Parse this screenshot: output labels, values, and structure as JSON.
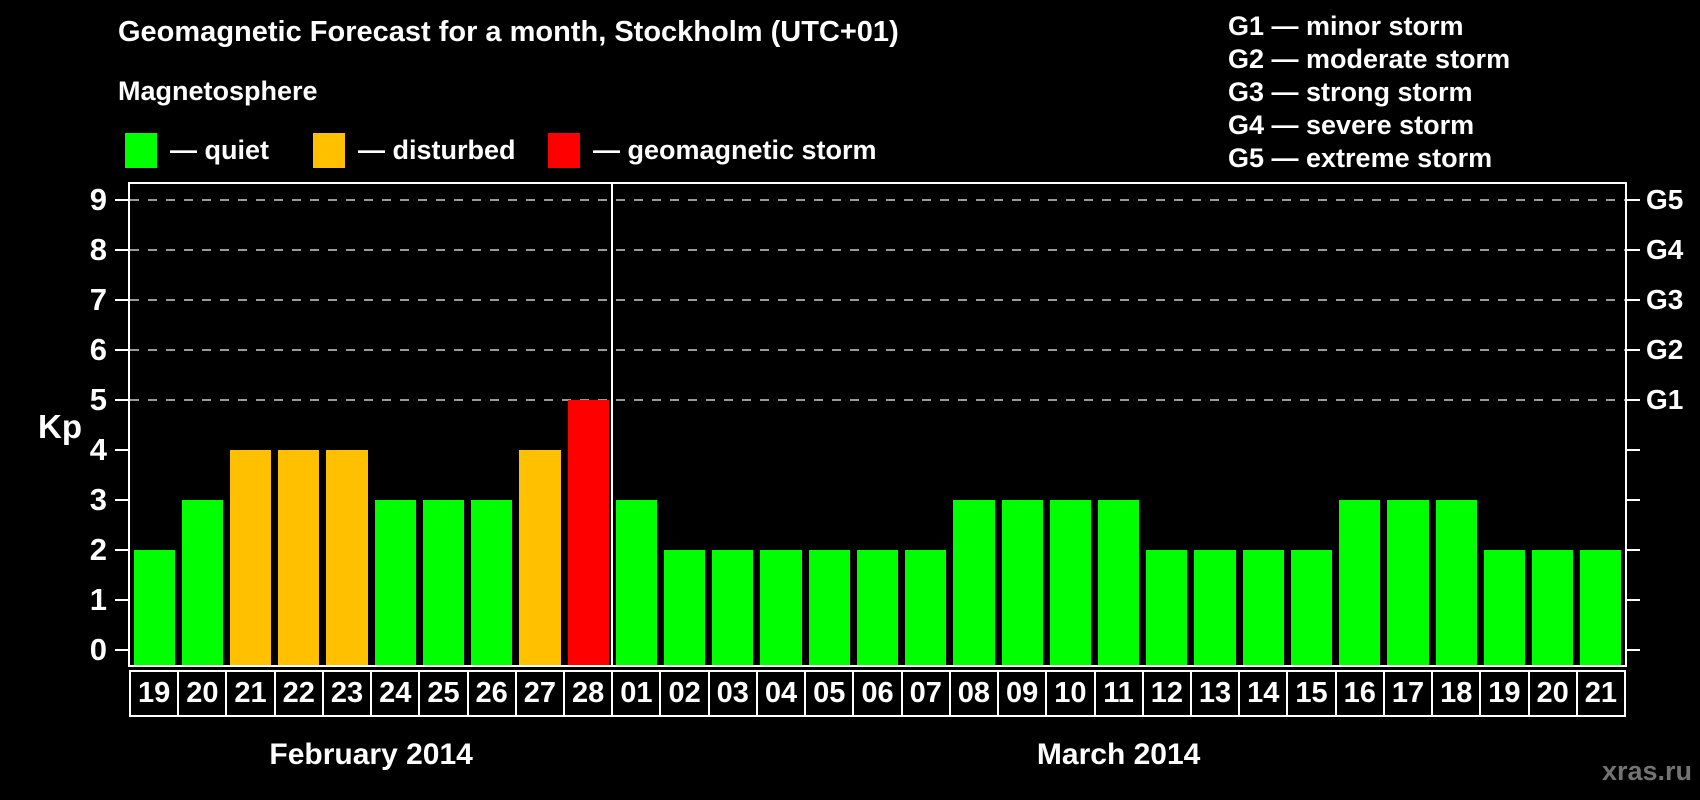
{
  "title": "Geomagnetic Forecast for a month, Stockholm (UTC+01)",
  "subtitle": "Magnetosphere",
  "watermark": "xras.ru",
  "legend": {
    "items": [
      {
        "name": "quiet",
        "label": "— quiet",
        "color": "#00ff00"
      },
      {
        "name": "disturbed",
        "label": "— disturbed",
        "color": "#ffc000"
      },
      {
        "name": "storm",
        "label": "— geomagnetic storm",
        "color": "#ff0000"
      }
    ]
  },
  "g_legend": {
    "lines": [
      "G1 — minor storm",
      "G2 — moderate storm",
      "G3 — strong storm",
      "G4 — severe storm",
      "G5 — extreme storm"
    ]
  },
  "chart_data": {
    "type": "bar",
    "ylabel": "Kp",
    "ylim": [
      0,
      9.3
    ],
    "yticks": [
      0,
      1,
      2,
      3,
      4,
      5,
      6,
      7,
      8,
      9
    ],
    "gridlines_at_kp": [
      5,
      6,
      7,
      8,
      9
    ],
    "grid": "dashed horizontal at storm levels only",
    "legend_position": "top",
    "right_axis": [
      {
        "kp": 5,
        "label": "G1"
      },
      {
        "kp": 6,
        "label": "G2"
      },
      {
        "kp": 7,
        "label": "G3"
      },
      {
        "kp": 8,
        "label": "G4"
      },
      {
        "kp": 9,
        "label": "G5"
      }
    ],
    "status_colors": {
      "quiet": "#00ff00",
      "disturbed": "#ffc000",
      "storm": "#ff0000"
    },
    "status_rule": {
      "disturbed_min_kp": 4,
      "storm_min_kp": 5
    },
    "months": [
      {
        "label": "February 2014",
        "days": [
          "19",
          "20",
          "21",
          "22",
          "23",
          "24",
          "25",
          "26",
          "27",
          "28"
        ],
        "kp": [
          2,
          3,
          4,
          4,
          4,
          3,
          3,
          3,
          4,
          5
        ]
      },
      {
        "label": "March 2014",
        "days": [
          "01",
          "02",
          "03",
          "04",
          "05",
          "06",
          "07",
          "08",
          "09",
          "10",
          "11",
          "12",
          "13",
          "14",
          "15",
          "16",
          "17",
          "18",
          "19",
          "20",
          "21"
        ],
        "kp": [
          3,
          2,
          2,
          2,
          2,
          2,
          2,
          3,
          3,
          3,
          3,
          2,
          2,
          2,
          2,
          3,
          3,
          3,
          2,
          2,
          2
        ]
      }
    ]
  }
}
